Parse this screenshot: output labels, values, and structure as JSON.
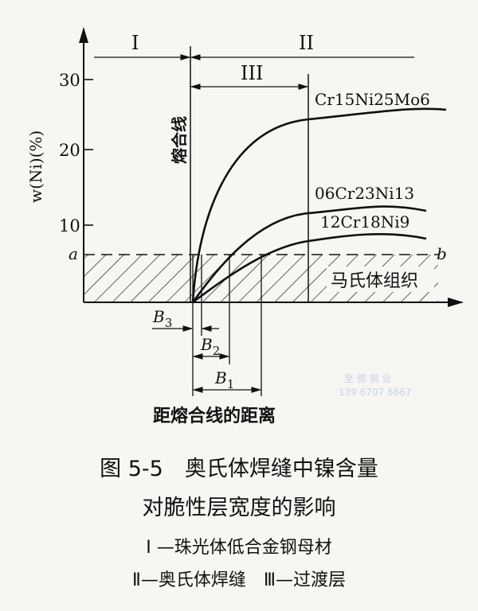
{
  "chart_data": {
    "type": "line",
    "ylabel": "w(Ni)(%)",
    "xlabel": "距熔合线的距离",
    "yticks": [
      "30",
      "20",
      "10"
    ],
    "ylim": [
      0,
      33
    ],
    "threshold": {
      "start_label": "a",
      "end_label": "b",
      "value_approx": 6.5,
      "region_label": "马氏体组织",
      "style": "dashed line with hatched region below"
    },
    "fusion_line_label": "熔合线",
    "zones": {
      "I": "I",
      "II": "II",
      "III": "III"
    },
    "widths": [
      "B3",
      "B2",
      "B1"
    ],
    "series": [
      {
        "name": "Cr15Ni25Mo6",
        "plateau_approx": 25.5
      },
      {
        "name": "06Cr23Ni13",
        "plateau_approx": 12.5
      },
      {
        "name": "12Cr18Ni9",
        "plateau_approx": 8.5
      }
    ],
    "grid": false
  },
  "caption": {
    "line1": "图 5-5　奥氏体焊缝中镍含量",
    "line2": "对脆性层宽度的影响",
    "legend1": "I —珠光体低合金钢母材",
    "legend2": "Ⅱ—奥氏体焊缝　Ⅲ—过渡层"
  },
  "watermark": {
    "line1": "至 德 钢 业",
    "line2": "139 6707 6667"
  }
}
